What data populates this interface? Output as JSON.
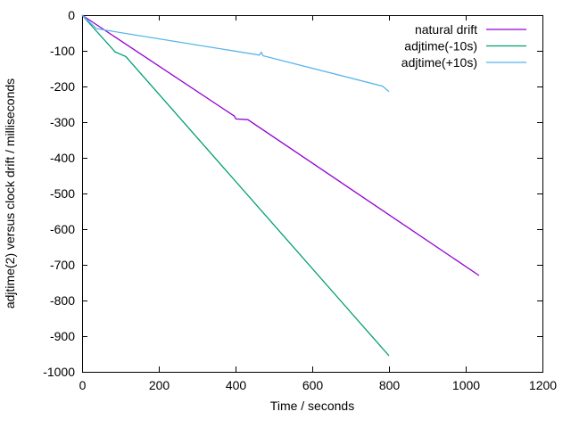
{
  "chart_data": {
    "type": "line",
    "title": "",
    "xlabel": "Time / seconds",
    "ylabel": "adjtime(2) versus clock drift / milliseconds",
    "xlim": [
      0,
      1200
    ],
    "ylim": [
      -1000,
      0
    ],
    "xticks": [
      0,
      200,
      400,
      600,
      800,
      1000,
      1200
    ],
    "yticks": [
      0,
      -100,
      -200,
      -300,
      -400,
      -500,
      -600,
      -700,
      -800,
      -900,
      -1000
    ],
    "grid": false,
    "legend_position": "top-right-inside",
    "border_color": "#000000",
    "background_color": "#ffffff",
    "series": [
      {
        "name": "natural drift",
        "color": "#9400d3",
        "points": [
          [
            0,
            0
          ],
          [
            397,
            -283
          ],
          [
            401,
            -291
          ],
          [
            432,
            -293
          ],
          [
            1035,
            -730
          ]
        ]
      },
      {
        "name": "adjtime(-10s)",
        "color": "#009e73",
        "points": [
          [
            0,
            0
          ],
          [
            86,
            -103
          ],
          [
            114,
            -116
          ],
          [
            800,
            -955
          ]
        ]
      },
      {
        "name": "adjtime(+10s)",
        "color": "#56b4e9",
        "points": [
          [
            0,
            0
          ],
          [
            38,
            -38
          ],
          [
            462,
            -112
          ],
          [
            467,
            -104
          ],
          [
            472,
            -114
          ],
          [
            783,
            -199
          ],
          [
            800,
            -214
          ]
        ]
      }
    ]
  }
}
